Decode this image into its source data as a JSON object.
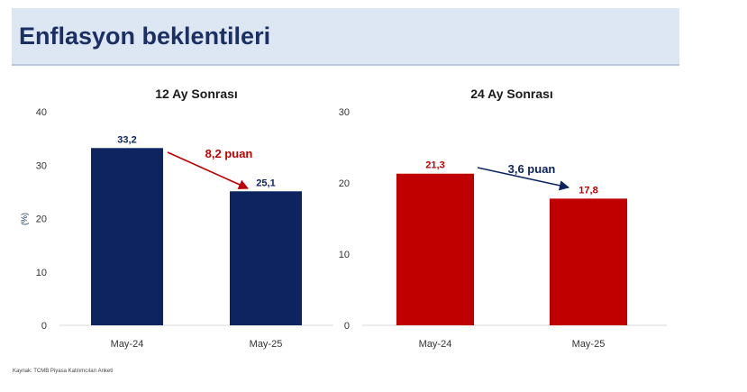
{
  "header": {
    "title": "Enflasyon beklentileri"
  },
  "source": "Kaynak: TCMB Piyasa Katılımcıları Anketi",
  "colors": {
    "navy": "#0d2460",
    "red": "#c00000",
    "tick": "#333333"
  },
  "chart_data": [
    {
      "type": "bar",
      "title": "12 Ay Sonrası",
      "ylabel": "(%)",
      "categories": [
        "May-24",
        "May-25"
      ],
      "values": [
        33.2,
        25.1
      ],
      "value_labels": [
        "33,2",
        "25,1"
      ],
      "ylim": [
        0,
        40
      ],
      "yticks": [
        "0",
        "10",
        "20",
        "30",
        "40"
      ],
      "bar_color": "#0d2460",
      "annotation": {
        "text": "8,2 puan",
        "color": "#c00000"
      }
    },
    {
      "type": "bar",
      "title": "24 Ay Sonrası",
      "ylabel": "",
      "categories": [
        "May-24",
        "May-25"
      ],
      "values": [
        21.3,
        17.8
      ],
      "value_labels": [
        "21,3",
        "17,8"
      ],
      "ylim": [
        0,
        30
      ],
      "yticks": [
        "0",
        "10",
        "20",
        "30"
      ],
      "bar_color": "#c00000",
      "annotation": {
        "text": "3,6 puan",
        "color": "#0d2460"
      }
    }
  ]
}
